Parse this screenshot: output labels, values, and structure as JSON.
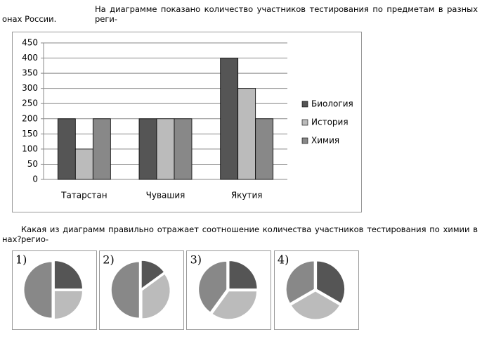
{
  "intro": [
    "На диаграмме показано количество участников тестирования по предметам в разных реги-",
    "онах России."
  ],
  "question": [
    "Какая из диаграмм правильно отражает соотношение количества участников тестирования по химии в регио-",
    "нах?"
  ],
  "chart_data": [
    {
      "type": "bar",
      "categories": [
        "Татарстан",
        "Чувашия",
        "Якутия"
      ],
      "series": [
        {
          "name": "Биология",
          "color": "#555555",
          "values": [
            200,
            200,
            400
          ]
        },
        {
          "name": "История",
          "color": "#bbbbbb",
          "values": [
            100,
            200,
            300
          ]
        },
        {
          "name": "Химия",
          "color": "#888888",
          "values": [
            200,
            200,
            200
          ]
        }
      ],
      "ylim": [
        0,
        450
      ],
      "yticks": [
        0,
        50,
        100,
        150,
        200,
        250,
        300,
        350,
        400,
        450
      ],
      "grid": true,
      "legend": "right"
    },
    {
      "type": "pie",
      "title": "1)",
      "values": [
        25,
        25,
        50
      ],
      "colors": [
        "#555555",
        "#bbbbbb",
        "#888888"
      ]
    },
    {
      "type": "pie",
      "title": "2)",
      "values": [
        15,
        35,
        50
      ],
      "colors": [
        "#555555",
        "#bbbbbb",
        "#888888"
      ]
    },
    {
      "type": "pie",
      "title": "3)",
      "values": [
        25,
        35,
        40
      ],
      "colors": [
        "#555555",
        "#bbbbbb",
        "#888888"
      ]
    },
    {
      "type": "pie",
      "title": "4)",
      "values": [
        33.3,
        33.3,
        33.3
      ],
      "colors": [
        "#555555",
        "#bbbbbb",
        "#888888"
      ]
    }
  ]
}
